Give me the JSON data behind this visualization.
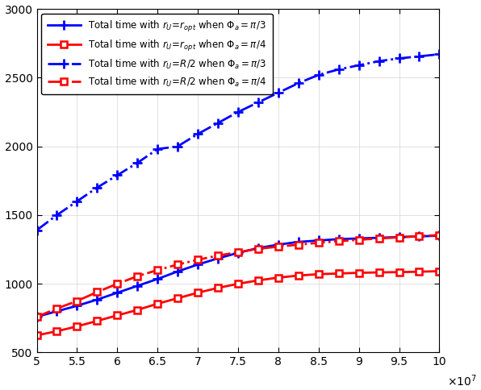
{
  "x_start": 50000000.0,
  "x_end": 100000000.0,
  "ylim": [
    500,
    3000
  ],
  "xlim": [
    50000000.0,
    100000000.0
  ],
  "yticks": [
    500,
    1000,
    1500,
    2000,
    2500,
    3000
  ],
  "xticks": [
    50000000.0,
    55000000.0,
    60000000.0,
    65000000.0,
    70000000.0,
    75000000.0,
    80000000.0,
    85000000.0,
    90000000.0,
    95000000.0,
    100000000.0
  ],
  "xtick_labels": [
    "5",
    "5.5",
    "6",
    "6.5",
    "7",
    "7.5",
    "8",
    "8.5",
    "9",
    "9.5",
    "10"
  ],
  "lines": [
    {
      "label": "Total time with $r_{U}\\!=\\!r_{opt}$ when $\\Phi_a = \\pi/3$",
      "color": "#0000FF",
      "linestyle": "-",
      "marker": "plus",
      "linewidth": 2.0,
      "y_values": [
        760,
        800,
        840,
        885,
        935,
        985,
        1035,
        1090,
        1140,
        1185,
        1225,
        1260,
        1285,
        1305,
        1315,
        1325,
        1330,
        1335,
        1340,
        1345,
        1350
      ]
    },
    {
      "label": "Total time with $r_{U}\\!=\\!r_{opt}$ when $\\Phi_a = \\pi/4$",
      "color": "#FF0000",
      "linestyle": "-",
      "marker": "square",
      "linewidth": 2.0,
      "y_values": [
        625,
        655,
        690,
        730,
        770,
        810,
        855,
        895,
        935,
        970,
        1000,
        1025,
        1045,
        1060,
        1070,
        1075,
        1080,
        1083,
        1085,
        1088,
        1092
      ]
    },
    {
      "label": "Total time with $r_{U}\\!=\\!R/2$ when $\\Phi_a = \\pi/3$",
      "color": "#0000FF",
      "linestyle": "-.",
      "marker": "plus",
      "linewidth": 2.0,
      "y_values": [
        1390,
        1500,
        1600,
        1700,
        1790,
        1880,
        1980,
        2000,
        2090,
        2170,
        2250,
        2320,
        2390,
        2460,
        2520,
        2560,
        2590,
        2620,
        2640,
        2655,
        2670
      ]
    },
    {
      "label": "Total time with $r_{U}\\!=\\!R/2$ when $\\Phi_a = \\pi/4$",
      "color": "#FF0000",
      "linestyle": "-.",
      "marker": "square",
      "linewidth": 2.0,
      "y_values": [
        760,
        820,
        875,
        940,
        1000,
        1055,
        1100,
        1140,
        1175,
        1205,
        1230,
        1255,
        1270,
        1285,
        1298,
        1310,
        1320,
        1330,
        1338,
        1347,
        1355
      ]
    }
  ]
}
